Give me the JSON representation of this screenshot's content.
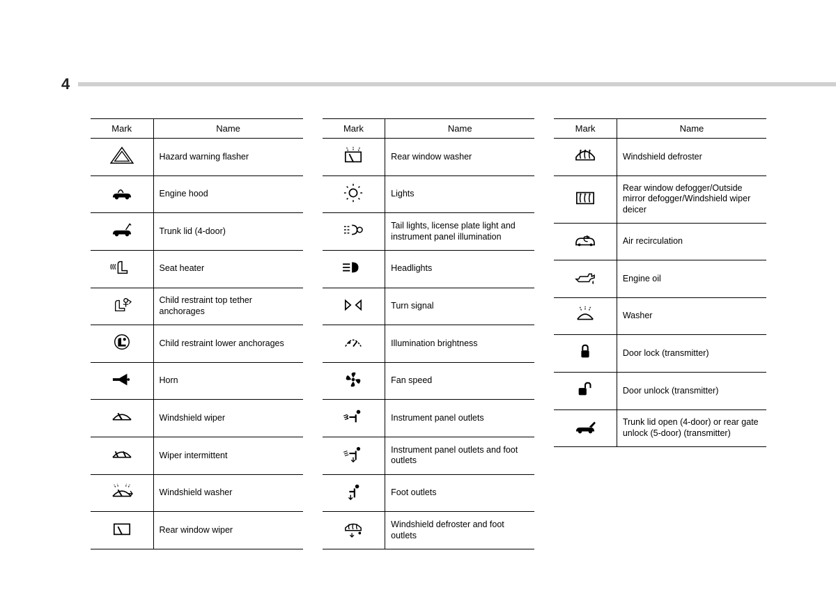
{
  "pageNumber": "4",
  "headers": {
    "mark": "Mark",
    "name": "Name"
  },
  "colors": {
    "pageBg": "#ffffff",
    "outerBg": "#f4f4f4",
    "headerLine": "#d0d0d0",
    "text": "#000000",
    "border": "#000000"
  },
  "fontSizes": {
    "pageNumber": 22,
    "header": 13,
    "cell": 12.5
  },
  "columns": [
    {
      "rows": [
        {
          "icon": "hazard",
          "name": "Hazard warning flasher"
        },
        {
          "icon": "hood",
          "name": "Engine hood"
        },
        {
          "icon": "trunk",
          "name": "Trunk lid (4-door)"
        },
        {
          "icon": "seat-heater",
          "name": "Seat heater"
        },
        {
          "icon": "child-top",
          "name": "Child restraint top tether anchorages"
        },
        {
          "icon": "child-lower",
          "name": "Child restraint lower anchorages"
        },
        {
          "icon": "horn",
          "name": "Horn"
        },
        {
          "icon": "wiper",
          "name": "Windshield wiper"
        },
        {
          "icon": "wiper-int",
          "name": "Wiper intermittent"
        },
        {
          "icon": "washer-front",
          "name": "Windshield washer"
        },
        {
          "icon": "rear-wiper",
          "name": "Rear window wiper"
        }
      ]
    },
    {
      "rows": [
        {
          "icon": "rear-washer",
          "name": "Rear window washer"
        },
        {
          "icon": "lights",
          "name": "Lights"
        },
        {
          "icon": "tail-lights",
          "name": "Tail lights, license plate light and instrument panel illumination"
        },
        {
          "icon": "headlights",
          "name": "Headlights"
        },
        {
          "icon": "turn-signal",
          "name": "Turn signal"
        },
        {
          "icon": "illumination",
          "name": "Illumination brightness"
        },
        {
          "icon": "fan",
          "name": "Fan speed"
        },
        {
          "icon": "panel-outlets",
          "name": "Instrument panel outlets"
        },
        {
          "icon": "panel-foot",
          "name": "Instrument panel outlets and foot outlets"
        },
        {
          "icon": "foot",
          "name": "Foot outlets"
        },
        {
          "icon": "defrost-foot",
          "name": "Windshield defroster and foot outlets"
        }
      ]
    },
    {
      "rows": [
        {
          "icon": "defroster",
          "name": "Windshield defroster"
        },
        {
          "icon": "rear-defogger",
          "name": "Rear window defogger/Outside mirror defogger/Windshield wiper deicer"
        },
        {
          "icon": "recirc",
          "name": "Air recirculation"
        },
        {
          "icon": "oil",
          "name": "Engine oil"
        },
        {
          "icon": "washer",
          "name": "Washer"
        },
        {
          "icon": "lock",
          "name": "Door lock (transmitter)"
        },
        {
          "icon": "unlock",
          "name": "Door unlock (transmitter)"
        },
        {
          "icon": "trunk-open",
          "name": "Trunk lid open (4-door) or rear gate unlock (5-door) (transmitter)"
        }
      ]
    }
  ]
}
